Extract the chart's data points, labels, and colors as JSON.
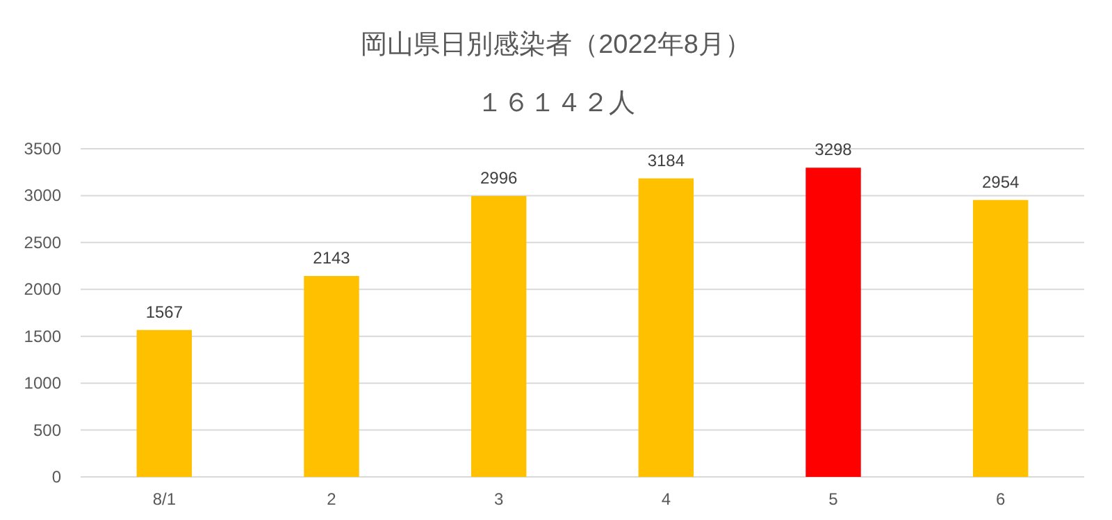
{
  "chart_data": {
    "type": "bar",
    "title": "岡山県日別感染者（2022年8月）",
    "subtitle": "１６１４２人",
    "categories": [
      "8/1",
      "2",
      "3",
      "4",
      "5",
      "6"
    ],
    "values": [
      1567,
      2143,
      2996,
      3184,
      3298,
      2954
    ],
    "colors": [
      "#ffc000",
      "#ffc000",
      "#ffc000",
      "#ffc000",
      "#ff0000",
      "#ffc000"
    ],
    "ylim": [
      0,
      3500
    ],
    "yticks": [
      0,
      500,
      1000,
      1500,
      2000,
      2500,
      3000,
      3500
    ],
    "grid": "y",
    "data_labels": true
  }
}
